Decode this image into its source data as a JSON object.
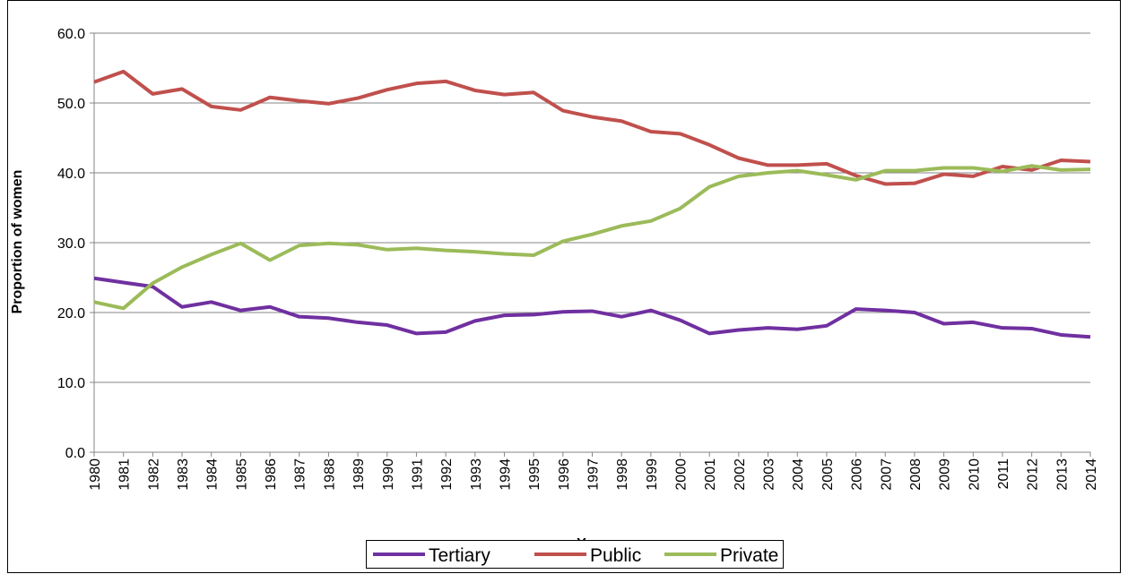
{
  "chart_data": {
    "type": "line",
    "ylabel": "Proportion of women",
    "xlabel": "Year",
    "categories": [
      "1980",
      "1981",
      "1982",
      "1983",
      "1984",
      "1985",
      "1986",
      "1987",
      "1988",
      "1989",
      "1990",
      "1991",
      "1992",
      "1993",
      "1994",
      "1995",
      "1996",
      "1997",
      "1998",
      "1999",
      "2000",
      "2001",
      "2002",
      "2003",
      "2004",
      "2005",
      "2006",
      "2007",
      "2008",
      "2009",
      "2010",
      "2011",
      "2012",
      "2013",
      "2014"
    ],
    "series": [
      {
        "name": "Tertiary",
        "color": "#7030a0",
        "values": [
          24.9,
          24.3,
          23.7,
          20.8,
          21.5,
          20.3,
          20.8,
          19.4,
          19.2,
          18.6,
          18.2,
          17.0,
          17.2,
          18.8,
          19.6,
          19.7,
          20.1,
          20.2,
          19.4,
          20.3,
          18.9,
          17.0,
          17.5,
          17.8,
          17.6,
          18.1,
          20.5,
          20.3,
          20.0,
          18.4,
          18.6,
          17.8,
          17.7,
          16.8,
          16.5
        ]
      },
      {
        "name": "Public",
        "color": "#c0504d",
        "values": [
          53.0,
          54.5,
          51.3,
          52.0,
          49.5,
          49.0,
          50.8,
          50.3,
          49.9,
          50.7,
          51.9,
          52.8,
          53.1,
          51.8,
          51.2,
          51.5,
          48.9,
          48.0,
          47.4,
          45.9,
          45.6,
          44.0,
          42.1,
          41.1,
          41.1,
          41.3,
          39.6,
          38.4,
          38.5,
          39.8,
          39.5,
          40.9,
          40.4,
          41.8,
          41.6
        ]
      },
      {
        "name": "Private",
        "color": "#9bbb59",
        "values": [
          21.5,
          20.6,
          24.2,
          26.5,
          28.3,
          29.9,
          27.5,
          29.6,
          29.9,
          29.7,
          29.0,
          29.2,
          28.9,
          28.7,
          28.4,
          28.2,
          30.2,
          31.2,
          32.4,
          33.1,
          34.9,
          38.0,
          39.5,
          40.0,
          40.3,
          39.7,
          39.0,
          40.3,
          40.3,
          40.7,
          40.7,
          40.2,
          41.0,
          40.4,
          40.5
        ]
      }
    ],
    "ylim": [
      0,
      60
    ],
    "yticks": [
      {
        "value": 0,
        "label": "0.0"
      },
      {
        "value": 10,
        "label": "10.0"
      },
      {
        "value": 20,
        "label": "20.0"
      },
      {
        "value": 30,
        "label": "30.0"
      },
      {
        "value": 40,
        "label": "40.0"
      },
      {
        "value": 50,
        "label": "50.0"
      },
      {
        "value": 60,
        "label": "60.0"
      }
    ],
    "grid": true,
    "legend": "bottom"
  }
}
